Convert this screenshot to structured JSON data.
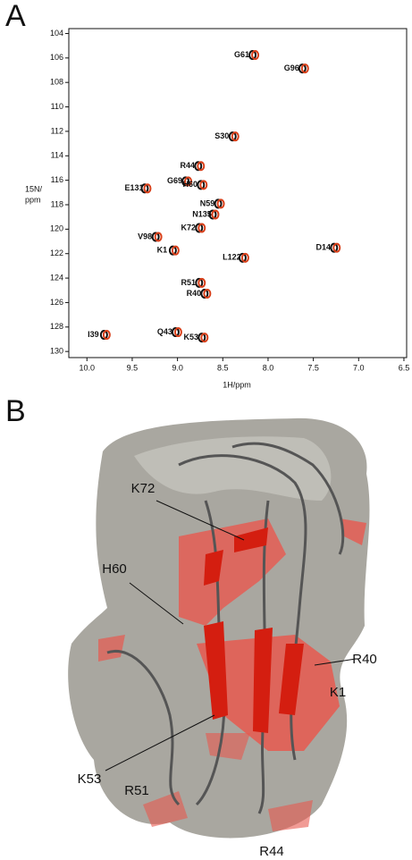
{
  "panel_labels": [
    "A",
    "B"
  ],
  "chart_data": {
    "type": "scatter",
    "xlabel": "1H/ppm",
    "ylabel_lines": [
      "15N/",
      "ppm"
    ],
    "xlim": [
      10.2,
      6.47
    ],
    "ylim": [
      103.6,
      130.5
    ],
    "xticks": [
      {
        "value": 10,
        "label": "10.0"
      },
      9.5,
      {
        "value": 9,
        "label": "9.0"
      },
      8.5,
      {
        "value": 8,
        "label": "8.0"
      },
      7.5,
      {
        "value": 7,
        "label": "7.0"
      },
      6.5
    ],
    "yticks": [
      104,
      106,
      108,
      110,
      112,
      114,
      116,
      118,
      120,
      122,
      124,
      126,
      128,
      130
    ],
    "marker_colors": [
      "#111111",
      "#d9401a"
    ],
    "labels": [
      "G61",
      "G96",
      "S30",
      "R44",
      "G69",
      "H60",
      "E131",
      "N59",
      "N135",
      "K72",
      "V98",
      "K1",
      "D14",
      "L122",
      "R51",
      "R40",
      "Q43",
      "K53",
      "I39"
    ],
    "x": [
      8.29,
      7.74,
      8.51,
      8.89,
      9.03,
      8.86,
      9.48,
      8.67,
      8.73,
      8.88,
      9.36,
      9.17,
      7.39,
      8.4,
      8.88,
      8.82,
      9.14,
      8.85,
      9.93
    ],
    "y": [
      105.76,
      106.86,
      112.42,
      114.84,
      116.09,
      116.38,
      116.67,
      117.92,
      118.8,
      119.9,
      120.63,
      121.74,
      121.52,
      122.34,
      124.39,
      125.27,
      128.42,
      128.86,
      128.64
    ]
  },
  "structure": {
    "labels": [
      "K72",
      "H60",
      "R40",
      "K1",
      "K53",
      "R51",
      "R44"
    ]
  }
}
